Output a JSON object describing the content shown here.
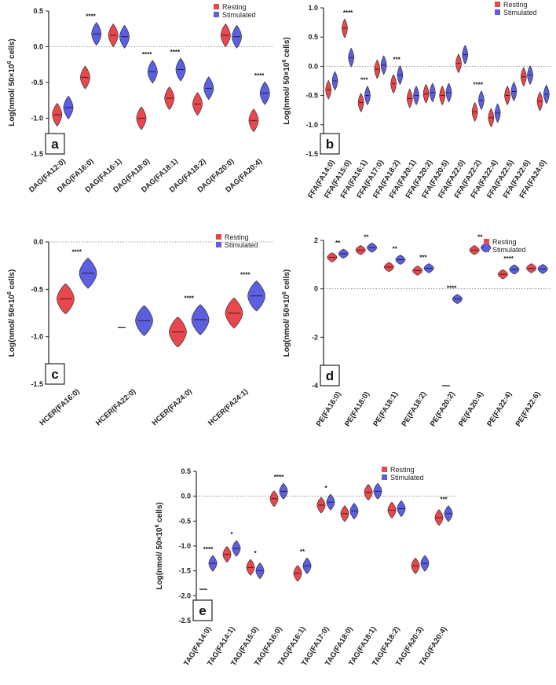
{
  "legend": {
    "resting": "Resting",
    "stimulated": "Stimulated"
  },
  "colors": {
    "resting": "#e8484d",
    "stimulated": "#5b5fe0"
  },
  "chart_data": [
    {
      "panel": "a",
      "type": "violin",
      "ylabel": "Log(nmol/ 50×10⁶ cells)",
      "ylim": [
        -1.5,
        0.5
      ],
      "yticks": [
        0.5,
        0.0,
        -0.5,
        -1.0,
        -1.5
      ],
      "ytick_labels": [
        "0.5",
        "0.0",
        "-0.5",
        "-1.0",
        "-1.5"
      ],
      "categories": [
        "DAG(FA12:0)",
        "DAG(FA16:0)",
        "DAG(FA16:1)",
        "DAG(FA18:0)",
        "DAG(FA18:1)",
        "DAG(FA18:2)",
        "DAG(FA20:0)",
        "DAG(FA20:4)"
      ],
      "series": [
        {
          "name": "Resting",
          "values": [
            -0.95,
            -0.43,
            0.16,
            -1.0,
            -0.72,
            -0.8,
            0.16,
            -1.03
          ]
        },
        {
          "name": "Stimulated",
          "values": [
            -0.85,
            0.18,
            0.14,
            -0.35,
            -0.32,
            -0.58,
            0.14,
            -0.65
          ]
        }
      ],
      "significance": [
        "",
        "****",
        "",
        "****",
        "****",
        "",
        "",
        "****"
      ]
    },
    {
      "panel": "b",
      "type": "violin",
      "ylabel": "Log(nmol/ 50×10⁶ cells)",
      "ylim": [
        -1.5,
        1.0
      ],
      "yticks": [
        1.0,
        0.5,
        0.0,
        -0.5,
        -1.0,
        -1.5
      ],
      "ytick_labels": [
        "1.0",
        "0.5",
        "0.0",
        "-0.5",
        "-1.0",
        "-1.5"
      ],
      "categories": [
        "FFA(FA14:0)",
        "FFA(FA15:0)",
        "FFA(FA16:1)",
        "FFA(FA17:0)",
        "FFA(FA18:2)",
        "FFA(FA20:1)",
        "FFA(FA20:2)",
        "FFA(FA20:5)",
        "FFA(FA22:0)",
        "FFA(FA22:2)",
        "FFA(FA22:4)",
        "FFA(FA22:5)",
        "FFA(FA22:6)",
        "FFA(FA24:0)"
      ],
      "series": [
        {
          "name": "Resting",
          "values": [
            -0.4,
            0.65,
            -0.62,
            -0.05,
            -0.3,
            -0.55,
            -0.47,
            -0.5,
            0.05,
            -0.78,
            -0.88,
            -0.5,
            -0.18,
            -0.6
          ]
        },
        {
          "name": "Stimulated",
          "values": [
            -0.25,
            0.15,
            -0.5,
            0.02,
            -0.15,
            -0.5,
            -0.45,
            -0.45,
            0.2,
            -0.58,
            -0.8,
            -0.43,
            -0.15,
            -0.48
          ]
        }
      ],
      "significance": [
        "",
        "****",
        "***",
        "",
        "***",
        "",
        "",
        "",
        "",
        "****",
        "",
        "",
        "",
        ""
      ]
    },
    {
      "panel": "c",
      "type": "violin",
      "ylabel": "Log(nmol/ 50×10⁶ cells)",
      "ylim": [
        -1.5,
        0.0
      ],
      "yticks": [
        0.0,
        -0.5,
        -1.0,
        -1.5
      ],
      "ytick_labels": [
        "0.0",
        "-0.5",
        "-1.0",
        "-1.5"
      ],
      "categories": [
        "HCER(FA16:0)",
        "HCER(FA22:0)",
        "HCER(FA24:0)",
        "HCER(FA24:1)"
      ],
      "series": [
        {
          "name": "Resting",
          "values": [
            -0.6,
            -0.9,
            -0.95,
            -0.75
          ]
        },
        {
          "name": "Stimulated",
          "values": [
            -0.33,
            -0.83,
            -0.82,
            -0.57
          ]
        }
      ],
      "significance": [
        "****",
        "",
        "****",
        "****"
      ]
    },
    {
      "panel": "d",
      "type": "violin",
      "ylabel": "Log(nmol/ 50×10⁶ cells)",
      "ylim": [
        -4,
        2
      ],
      "yticks": [
        2,
        0,
        -2,
        -4
      ],
      "ytick_labels": [
        "2",
        "0",
        "-2",
        "-4"
      ],
      "categories": [
        "PE(FA16:0)",
        "PE(FA18:0)",
        "PE(FA18:1)",
        "PE(FA18:2)",
        "PE(FA20:2)",
        "PE(FA20:4)",
        "PE(FA22:4)",
        "PE(FA22:6)"
      ],
      "series": [
        {
          "name": "Resting",
          "values": [
            1.3,
            1.6,
            0.9,
            0.75,
            -4.0,
            1.6,
            0.6,
            0.85
          ]
        },
        {
          "name": "Stimulated",
          "values": [
            1.45,
            1.7,
            1.2,
            0.85,
            -0.42,
            1.7,
            0.8,
            0.82
          ]
        }
      ],
      "significance": [
        "**",
        "**",
        "**",
        "***",
        "****",
        "**",
        "****",
        ""
      ]
    },
    {
      "panel": "e",
      "type": "violin",
      "ylabel": "Log(nmol/ 50×10⁶ cells)",
      "ylim": [
        -2.5,
        0.5
      ],
      "yticks": [
        0.5,
        0.0,
        -0.5,
        -1.0,
        -1.5,
        -2.0,
        -2.5
      ],
      "ytick_labels": [
        "0.5",
        "0.0",
        "-0.5",
        "-1.0",
        "-1.5",
        "-2.0",
        "-2.5"
      ],
      "categories": [
        "TAG(FA14:0)",
        "TAG(FA14:1)",
        "TAG(FA15:0)",
        "TAG(FA16:0)",
        "TAG(FA16:1)",
        "TAG(FA17:0)",
        "TAG(FA18:0)",
        "TAG(FA18:1)",
        "TAG(FA18:2)",
        "TAG(FA20:3)",
        "TAG(FA20:4)"
      ],
      "series": [
        {
          "name": "Resting",
          "values": [
            -1.87,
            -1.17,
            -1.43,
            -0.05,
            -1.55,
            -0.18,
            -0.35,
            0.08,
            -0.28,
            -1.4,
            -0.43
          ]
        },
        {
          "name": "Stimulated",
          "values": [
            -1.35,
            -1.05,
            -1.5,
            0.1,
            -1.4,
            -0.12,
            -0.3,
            0.1,
            -0.25,
            -1.35,
            -0.35
          ]
        }
      ],
      "significance": [
        "****",
        "*",
        "*",
        "****",
        "**",
        "*",
        "",
        "",
        "",
        "",
        "***"
      ]
    }
  ]
}
